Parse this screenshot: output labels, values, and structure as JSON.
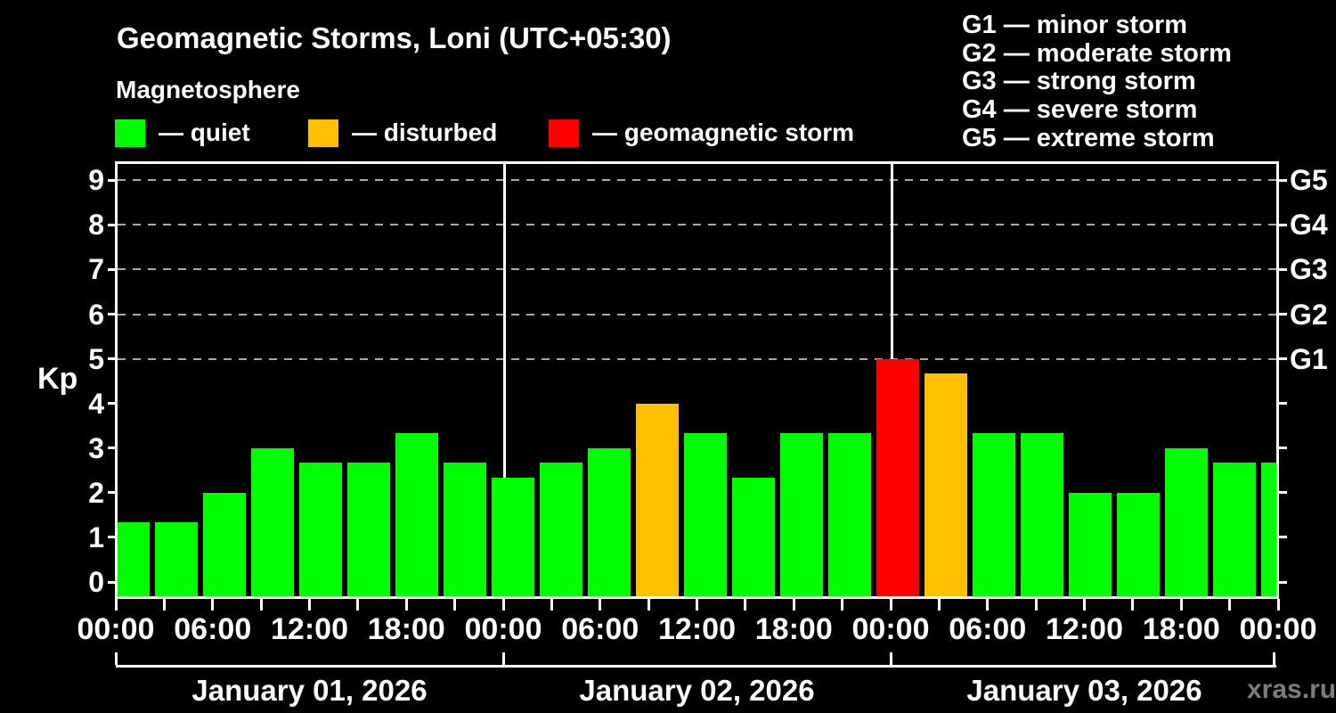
{
  "page": {
    "background": "#000000",
    "text_color": "#ffffff"
  },
  "header": {
    "title": "Geomagnetic Storms, Loni (UTC+05:30)",
    "subtitle": "Magnetosphere"
  },
  "condition_legend": [
    {
      "name": "quiet",
      "label": "— quiet",
      "color": "#00ff00"
    },
    {
      "name": "disturbed",
      "label": "— disturbed",
      "color": "#ffc000"
    },
    {
      "name": "storm",
      "label": "— geomagnetic storm",
      "color": "#ff0000"
    }
  ],
  "storm_scale_legend": [
    "G1 — minor storm",
    "G2 — moderate storm",
    "G3 — strong storm",
    "G4 — severe storm",
    "G5 — extreme storm"
  ],
  "watermark": "xras.ru",
  "chart_data": {
    "type": "bar",
    "title": "Geomagnetic Storms, Loni (UTC+05:30)",
    "ylabel": "Kp",
    "ylim": [
      0,
      9
    ],
    "yticks": [
      0,
      1,
      2,
      3,
      4,
      5,
      6,
      7,
      8,
      9
    ],
    "gridline_levels": [
      5,
      6,
      7,
      8,
      9
    ],
    "grid_on": true,
    "right_axis_labels": [
      {
        "label": "G1",
        "kp": 5
      },
      {
        "label": "G2",
        "kp": 6
      },
      {
        "label": "G3",
        "kp": 7
      },
      {
        "label": "G4",
        "kp": 8
      },
      {
        "label": "G5",
        "kp": 9
      }
    ],
    "x_tick_interval_hours": 3,
    "x_label_interval_hours": 6,
    "hour_labels": [
      "00:00",
      "06:00",
      "12:00",
      "18:00",
      "00:00",
      "06:00",
      "12:00",
      "18:00",
      "00:00",
      "06:00",
      "12:00",
      "18:00",
      "00:00"
    ],
    "days": [
      {
        "date": "January 01, 2026",
        "kp": [
          1.33,
          1.33,
          2.0,
          3.0,
          2.67,
          2.67,
          3.33,
          2.67
        ]
      },
      {
        "date": "January 02, 2026",
        "kp": [
          2.33,
          2.67,
          3.0,
          4.0,
          3.33,
          2.33,
          3.33,
          3.33
        ]
      },
      {
        "date": "January 03, 2026",
        "kp": [
          5.0,
          4.67,
          3.33,
          3.33,
          2.0,
          2.0,
          3.0,
          2.67
        ]
      }
    ],
    "next_day_partial_kp": 2.67,
    "color_rules": {
      "disturbed_from": 4,
      "storm_from": 5
    },
    "colors": {
      "quiet": "#00ff00",
      "disturbed": "#ffc000",
      "storm": "#ff0000"
    },
    "legend_position": "top"
  }
}
